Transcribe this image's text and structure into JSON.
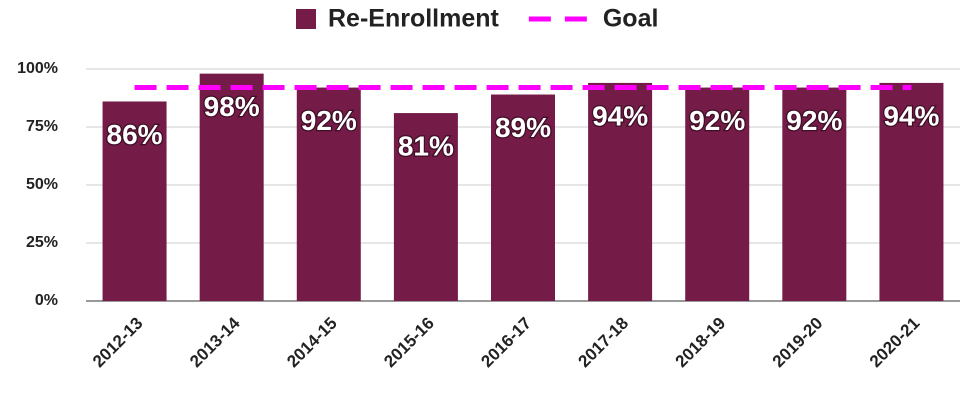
{
  "chart_data": {
    "type": "bar",
    "categories": [
      "2012-13",
      "2013-14",
      "2014-15",
      "2015-16",
      "2016-17",
      "2017-18",
      "2018-19",
      "2019-20",
      "2020-21"
    ],
    "series": [
      {
        "name": "Re-Enrollment",
        "type": "bar",
        "color": "#741b47",
        "values": [
          86,
          98,
          92,
          81,
          89,
          94,
          92,
          92,
          94
        ],
        "value_labels": [
          "86%",
          "98%",
          "92%",
          "81%",
          "89%",
          "94%",
          "92%",
          "92%",
          "94%"
        ]
      },
      {
        "name": "Goal",
        "type": "line",
        "dashed": true,
        "color": "#ff00ff",
        "values": [
          92,
          92,
          92,
          92,
          92,
          92,
          92,
          92,
          92
        ]
      }
    ],
    "ylim": [
      0,
      100
    ],
    "yticks": [
      {
        "value": 0,
        "label": "0%"
      },
      {
        "value": 25,
        "label": "25%"
      },
      {
        "value": 50,
        "label": "50%"
      },
      {
        "value": 75,
        "label": "75%"
      },
      {
        "value": 100,
        "label": "100%"
      }
    ],
    "grid": true,
    "legend": "top"
  }
}
